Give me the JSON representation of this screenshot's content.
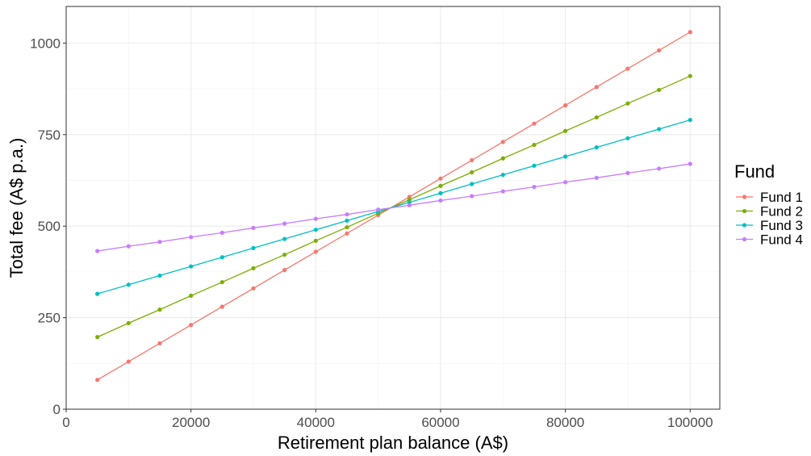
{
  "chart_data": {
    "type": "line",
    "xlabel": "Retirement plan balance (A$)",
    "ylabel": "Total fee (A$ p.a.)",
    "xlim": [
      0,
      104750
    ],
    "ylim": [
      0,
      1100
    ],
    "x_ticks": [
      0,
      20000,
      40000,
      60000,
      80000,
      100000
    ],
    "y_ticks": [
      0,
      250,
      500,
      750,
      1000
    ],
    "grid": true,
    "legend": {
      "title": "Fund",
      "position": "right"
    },
    "x": [
      5000,
      10000,
      15000,
      20000,
      25000,
      30000,
      35000,
      40000,
      45000,
      50000,
      55000,
      60000,
      65000,
      70000,
      75000,
      80000,
      85000,
      90000,
      95000,
      100000
    ],
    "series": [
      {
        "name": "Fund 1",
        "color": "#F8766D",
        "values": [
          80,
          130,
          180,
          230,
          280,
          330,
          380,
          430,
          480,
          530,
          580,
          630,
          680,
          730,
          780,
          830,
          880,
          930,
          980,
          1030
        ]
      },
      {
        "name": "Fund 2",
        "color": "#7CAE00",
        "values": [
          197,
          235,
          272,
          310,
          347,
          385,
          422,
          460,
          497,
          535,
          572,
          610,
          647,
          685,
          722,
          760,
          797,
          835,
          872,
          910
        ]
      },
      {
        "name": "Fund 3",
        "color": "#00BFC4",
        "values": [
          315,
          340,
          365,
          390,
          415,
          440,
          465,
          490,
          515,
          540,
          565,
          590,
          615,
          640,
          665,
          690,
          715,
          740,
          765,
          790
        ]
      },
      {
        "name": "Fund 4",
        "color": "#C77CFF",
        "values": [
          432,
          445,
          457,
          470,
          482,
          495,
          507,
          520,
          532,
          545,
          557,
          570,
          582,
          595,
          607,
          620,
          632,
          645,
          657,
          670
        ]
      }
    ]
  }
}
